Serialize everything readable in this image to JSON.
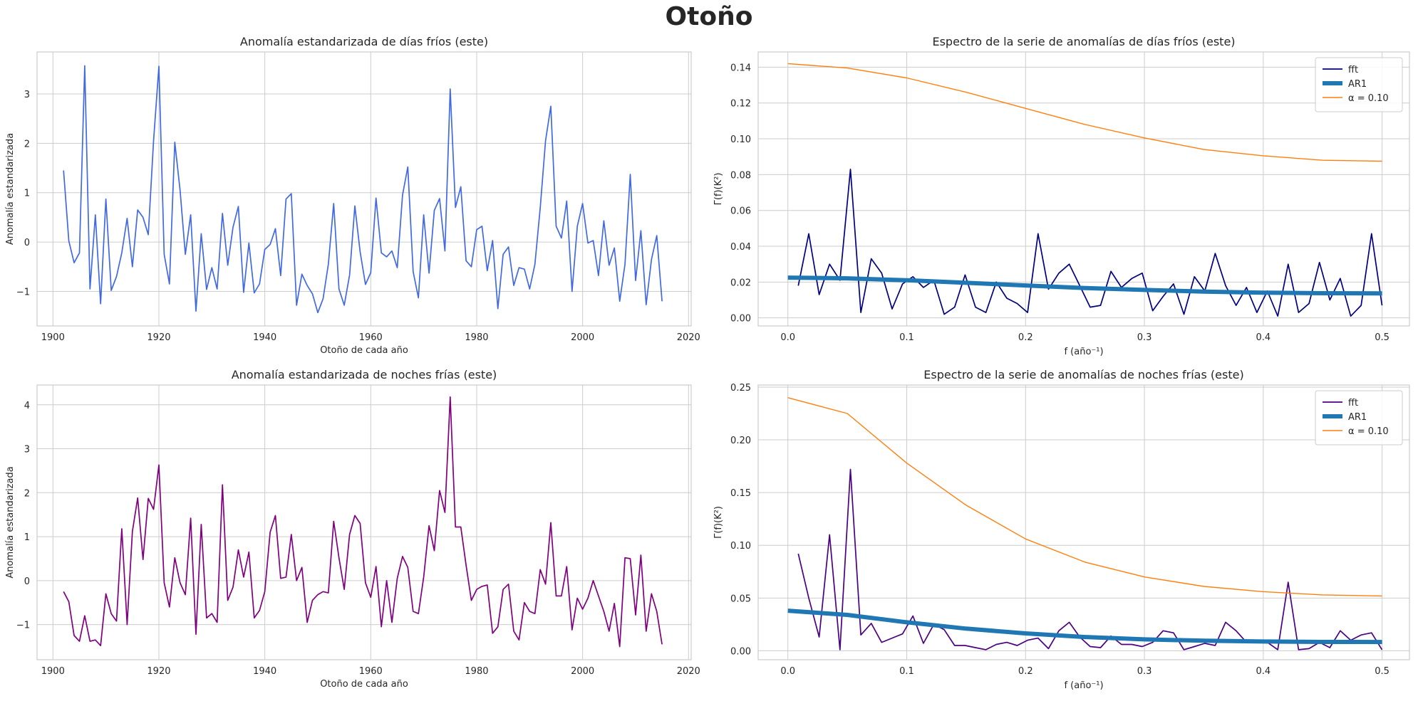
{
  "figure": {
    "suptitle": "Otoño"
  },
  "chart_data": [
    {
      "id": "days-anomaly",
      "type": "line",
      "title": "Anomalía estandarizada de días fríos (este)",
      "xlabel": "Otoño de cada año",
      "ylabel": "Anomalía estandarizada",
      "xlim": [
        1897,
        2020.5
      ],
      "ylim": [
        -1.7,
        3.85
      ],
      "xticks": [
        1900,
        1920,
        1940,
        1960,
        1980,
        2000,
        2020
      ],
      "xtick_labels": [
        "1900",
        "1920",
        "1940",
        "1960",
        "1980",
        "2000",
        "2020"
      ],
      "yticks": [
        -1,
        0,
        1,
        2,
        3
      ],
      "ytick_labels": [
        "−1",
        "0",
        "1",
        "2",
        "3"
      ],
      "grid": true,
      "legend": null,
      "series": [
        {
          "color": "#4169e1",
          "width": 1.7,
          "x_start": 1902,
          "x_step": 1,
          "values": [
            1.45,
            0.02,
            -0.42,
            -0.22,
            3.57,
            -0.95,
            0.55,
            -1.25,
            0.87,
            -0.98,
            -0.7,
            -0.22,
            0.48,
            -0.5,
            0.65,
            0.5,
            0.15,
            2.05,
            3.56,
            -0.25,
            -0.85,
            2.02,
            1.05,
            -0.25,
            0.55,
            -1.4,
            0.17,
            -0.96,
            -0.52,
            -0.95,
            0.58,
            -0.47,
            0.3,
            0.72,
            -1.02,
            -0.02,
            -1.03,
            -0.85,
            -0.15,
            -0.05,
            0.27,
            -0.68,
            0.87,
            0.98,
            -1.28,
            -0.65,
            -0.88,
            -1.05,
            -1.43,
            -1.15,
            -0.45,
            0.78,
            -0.95,
            -1.28,
            -0.67,
            0.73,
            -0.2,
            -0.86,
            -0.62,
            0.89,
            -0.22,
            -0.3,
            -0.18,
            -0.52,
            0.95,
            1.52,
            -0.6,
            -1.13,
            0.55,
            -0.63,
            0.64,
            0.88,
            -0.18,
            3.1,
            0.7,
            1.12,
            -0.38,
            -0.5,
            0.25,
            0.32,
            -0.58,
            0.03,
            -1.35,
            -0.25,
            -0.1,
            -0.88,
            -0.52,
            -0.55,
            -0.95,
            -0.45,
            0.7,
            2.05,
            2.75,
            0.32,
            0.08,
            0.83,
            -1.0,
            0.32,
            0.78,
            -0.02,
            0.03,
            -0.68,
            0.43,
            -0.47,
            -0.12,
            -1.2,
            -0.45,
            1.37,
            -0.78,
            0.23,
            -1.27,
            -0.35,
            0.13,
            -1.2
          ]
        }
      ]
    },
    {
      "id": "days-spectrum",
      "type": "line",
      "title": "Espectro de la serie de anomalías de días fríos (este)",
      "xlabel": "f (año⁻¹)",
      "ylabel": "Γ(f)(K²)",
      "xlim": [
        -0.025,
        0.523
      ],
      "ylim": [
        -0.0045,
        0.1485
      ],
      "xticks": [
        0,
        0.1,
        0.2,
        0.3,
        0.4,
        0.5
      ],
      "xtick_labels": [
        "0.0",
        "0.1",
        "0.2",
        "0.3",
        "0.4",
        "0.5"
      ],
      "yticks": [
        0,
        0.02,
        0.04,
        0.06,
        0.08,
        0.1,
        0.12,
        0.14
      ],
      "ytick_labels": [
        "0.00",
        "0.02",
        "0.04",
        "0.06",
        "0.08",
        "0.10",
        "0.12",
        "0.14"
      ],
      "grid": true,
      "legend": "top-right",
      "series": [
        {
          "name": "fft",
          "color": "#000080",
          "width": 1.7,
          "x_start": 0.00877,
          "x_step": 0.00877,
          "values": [
            0.018,
            0.047,
            0.013,
            0.03,
            0.021,
            0.083,
            0.003,
            0.033,
            0.025,
            0.005,
            0.019,
            0.023,
            0.017,
            0.021,
            0.002,
            0.006,
            0.024,
            0.006,
            0.003,
            0.02,
            0.011,
            0.008,
            0.003,
            0.047,
            0.016,
            0.025,
            0.03,
            0.018,
            0.006,
            0.007,
            0.026,
            0.017,
            0.022,
            0.025,
            0.004,
            0.012,
            0.019,
            0.002,
            0.023,
            0.015,
            0.036,
            0.018,
            0.007,
            0.017,
            0.003,
            0.015,
            0.001,
            0.03,
            0.003,
            0.008,
            0.031,
            0.01,
            0.022,
            0.001,
            0.007,
            0.047,
            0.007
          ]
        },
        {
          "name": "AR1",
          "color": "#1f77b4",
          "width": 6,
          "x": [
            0,
            0.05,
            0.1,
            0.15,
            0.2,
            0.25,
            0.3,
            0.35,
            0.4,
            0.45,
            0.5
          ],
          "values": [
            0.0225,
            0.0221,
            0.021,
            0.0196,
            0.0181,
            0.0167,
            0.0156,
            0.0147,
            0.0141,
            0.0138,
            0.0137
          ]
        },
        {
          "name": "α = 0.10",
          "color": "#ff7f0e",
          "width": 1.4,
          "x": [
            0,
            0.05,
            0.1,
            0.15,
            0.2,
            0.25,
            0.3,
            0.35,
            0.4,
            0.45,
            0.5
          ],
          "values": [
            0.142,
            0.1395,
            0.134,
            0.126,
            0.117,
            0.108,
            0.1005,
            0.094,
            0.0905,
            0.088,
            0.0875
          ]
        }
      ]
    },
    {
      "id": "nights-anomaly",
      "type": "line",
      "title": "Anomalía estandarizada de noches frías (este)",
      "xlabel": "Otoño de cada año",
      "ylabel": "Anomalía estandarizada",
      "xlim": [
        1897,
        2020.5
      ],
      "ylim": [
        -1.8,
        4.45
      ],
      "xticks": [
        1900,
        1920,
        1940,
        1960,
        1980,
        2000,
        2020
      ],
      "xtick_labels": [
        "1900",
        "1920",
        "1940",
        "1960",
        "1980",
        "2000",
        "2020"
      ],
      "yticks": [
        -1,
        0,
        1,
        2,
        3,
        4
      ],
      "ytick_labels": [
        "−1",
        "0",
        "1",
        "2",
        "3",
        "4"
      ],
      "grid": true,
      "legend": null,
      "series": [
        {
          "color": "#800080",
          "width": 1.7,
          "x_start": 1902,
          "x_step": 1,
          "values": [
            -0.25,
            -0.48,
            -1.25,
            -1.38,
            -0.8,
            -1.38,
            -1.35,
            -1.48,
            -0.3,
            -0.75,
            -0.92,
            1.18,
            -1.0,
            1.12,
            1.88,
            0.48,
            1.87,
            1.62,
            2.63,
            -0.05,
            -0.6,
            0.52,
            -0.05,
            -0.32,
            1.42,
            -1.22,
            1.28,
            -0.85,
            -0.75,
            -0.95,
            2.18,
            -0.45,
            -0.15,
            0.7,
            0.08,
            0.65,
            -0.85,
            -0.68,
            -0.25,
            1.1,
            1.48,
            0.05,
            0.08,
            1.05,
            0.0,
            0.3,
            -0.95,
            -0.45,
            -0.32,
            -0.25,
            -0.28,
            1.35,
            0.52,
            -0.2,
            1.05,
            1.48,
            1.3,
            -0.05,
            -0.38,
            0.32,
            -1.05,
            0.0,
            -0.95,
            0.05,
            0.55,
            0.3,
            -0.7,
            -0.75,
            0.08,
            1.25,
            0.68,
            2.05,
            1.55,
            4.18,
            1.22,
            1.22,
            0.35,
            -0.45,
            -0.2,
            -0.13,
            -0.1,
            -1.2,
            -1.05,
            -0.2,
            -0.08,
            -1.15,
            -1.35,
            -0.5,
            -0.7,
            -0.75,
            0.25,
            -0.08,
            1.32,
            -0.35,
            -0.35,
            0.32,
            -1.12,
            -0.4,
            -0.65,
            -0.4,
            0.0,
            -0.35,
            -0.7,
            -1.15,
            -0.52,
            -1.5,
            0.52,
            0.5,
            -0.78,
            0.58,
            -1.15,
            -0.3,
            -0.7,
            -1.45
          ]
        }
      ]
    },
    {
      "id": "nights-spectrum",
      "type": "line",
      "title": "Espectro de la serie de anomalías de noches frías (este)",
      "xlabel": "f (año⁻¹)",
      "ylabel": "Γ(f)(K²)",
      "xlim": [
        -0.025,
        0.523
      ],
      "ylim": [
        -0.0085,
        0.252
      ],
      "xticks": [
        0,
        0.1,
        0.2,
        0.3,
        0.4,
        0.5
      ],
      "xtick_labels": [
        "0.0",
        "0.1",
        "0.2",
        "0.3",
        "0.4",
        "0.5"
      ],
      "yticks": [
        0,
        0.05,
        0.1,
        0.15,
        0.2,
        0.25
      ],
      "ytick_labels": [
        "0.00",
        "0.05",
        "0.10",
        "0.15",
        "0.20",
        "0.25"
      ],
      "grid": true,
      "legend": "top-right",
      "series": [
        {
          "name": "fft",
          "color": "#4b0082",
          "width": 1.7,
          "x_start": 0.00877,
          "x_step": 0.00877,
          "values": [
            0.092,
            0.05,
            0.013,
            0.11,
            0.001,
            0.172,
            0.015,
            0.026,
            0.008,
            0.012,
            0.016,
            0.033,
            0.007,
            0.025,
            0.02,
            0.005,
            0.005,
            0.003,
            0.001,
            0.006,
            0.008,
            0.005,
            0.01,
            0.012,
            0.002,
            0.019,
            0.027,
            0.013,
            0.004,
            0.003,
            0.014,
            0.006,
            0.006,
            0.004,
            0.008,
            0.019,
            0.017,
            0.001,
            0.004,
            0.007,
            0.005,
            0.027,
            0.019,
            0.008,
            0.01,
            0.008,
            0.001,
            0.065,
            0.001,
            0.002,
            0.008,
            0.003,
            0.019,
            0.01,
            0.015,
            0.017,
            0.001
          ]
        },
        {
          "name": "AR1",
          "color": "#1f77b4",
          "width": 6,
          "x": [
            0,
            0.05,
            0.1,
            0.15,
            0.2,
            0.25,
            0.3,
            0.35,
            0.4,
            0.45,
            0.5
          ],
          "values": [
            0.038,
            0.034,
            0.027,
            0.021,
            0.0165,
            0.013,
            0.0108,
            0.0095,
            0.0088,
            0.0084,
            0.0083
          ]
        },
        {
          "name": "α = 0.10",
          "color": "#ff7f0e",
          "width": 1.4,
          "x": [
            0,
            0.05,
            0.1,
            0.15,
            0.2,
            0.25,
            0.3,
            0.35,
            0.4,
            0.45,
            0.5
          ],
          "values": [
            0.24,
            0.225,
            0.178,
            0.138,
            0.106,
            0.084,
            0.07,
            0.061,
            0.056,
            0.053,
            0.052
          ]
        }
      ]
    }
  ]
}
